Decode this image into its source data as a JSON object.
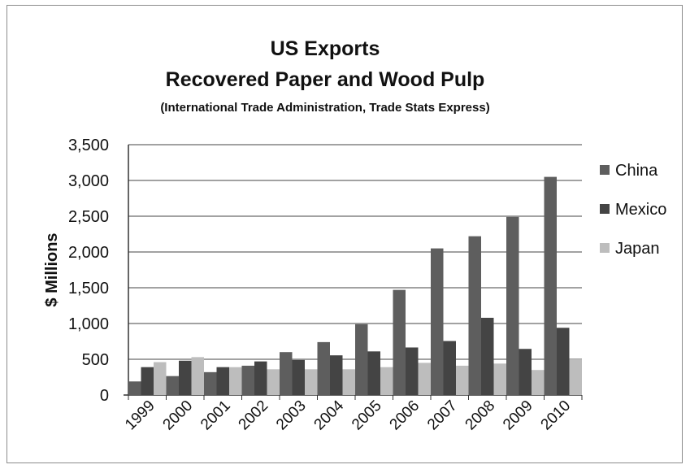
{
  "chart_data": {
    "type": "bar",
    "title": "US Exports",
    "subtitle": "Recovered Paper and Wood Pulp",
    "source_note": "(International Trade Administration, Trade Stats Express)",
    "ylabel": "$ Millions",
    "ylim": [
      0,
      3500
    ],
    "yticks": [
      "0",
      "500",
      "1,000",
      "1,500",
      "2,000",
      "2,500",
      "3,000",
      "3,500"
    ],
    "categories": [
      "1999",
      "2000",
      "2001",
      "2002",
      "2003",
      "2004",
      "2005",
      "2006",
      "2007",
      "2008",
      "2009",
      "2010"
    ],
    "series": [
      {
        "name": "China",
        "color": "#5e5e5e",
        "values": [
          190,
          265,
          320,
          410,
          600,
          740,
          990,
          1470,
          2050,
          2220,
          2490,
          3050
        ]
      },
      {
        "name": "Mexico",
        "color": "#444444",
        "values": [
          390,
          480,
          390,
          470,
          490,
          555,
          610,
          665,
          755,
          1080,
          645,
          940
        ]
      },
      {
        "name": "Japan",
        "color": "#bdbdbd",
        "values": [
          460,
          530,
          390,
          360,
          360,
          360,
          390,
          450,
          410,
          440,
          350,
          500
        ]
      }
    ],
    "grid": true,
    "legend": "right"
  }
}
